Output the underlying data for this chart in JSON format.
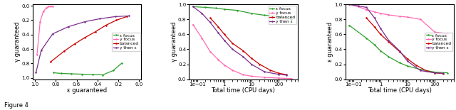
{
  "fig_width": 6.4,
  "fig_height": 1.55,
  "colors": {
    "eps_focus": "#2ca02c",
    "y_focus": "#ff69b4",
    "balanced": "#cc0000",
    "y_then_eps": "#7b2d8b"
  },
  "plot1": {
    "xlabel": "ε guaranteed",
    "ylabel": "γ guaranteed",
    "xlim": [
      1.02,
      -0.02
    ],
    "ylim": [
      1.02,
      -0.02
    ],
    "xticks": [
      1.0,
      0.8,
      0.6,
      0.4,
      0.2,
      0.0
    ],
    "yticks": [
      0.0,
      0.2,
      0.4,
      0.6,
      0.8,
      1.0
    ],
    "eps_focus": {
      "x": [
        0.82,
        0.75,
        0.65,
        0.55,
        0.45,
        0.35,
        0.25,
        0.17
      ],
      "y": [
        0.93,
        0.94,
        0.945,
        0.95,
        0.955,
        0.96,
        0.9,
        0.8
      ]
    },
    "y_focus": {
      "x": [
        0.98,
        0.95,
        0.92,
        0.89,
        0.87,
        0.85,
        0.83
      ],
      "y": [
        0.68,
        0.22,
        0.08,
        0.03,
        0.01,
        0.005,
        0.003
      ]
    },
    "balanced": {
      "x": [
        0.85,
        0.72,
        0.62,
        0.52,
        0.42,
        0.32,
        0.22,
        0.12
      ],
      "y": [
        0.78,
        0.63,
        0.53,
        0.44,
        0.36,
        0.27,
        0.2,
        0.15
      ]
    },
    "y_then_eps": {
      "x": [
        0.99,
        0.94,
        0.83,
        0.68,
        0.52,
        0.38,
        0.23,
        0.1
      ],
      "y": [
        0.93,
        0.62,
        0.39,
        0.29,
        0.22,
        0.18,
        0.15,
        0.14
      ]
    }
  },
  "plot2": {
    "xlabel": "Total time (CPU days)",
    "ylabel": "γ guaranteed",
    "xlim_log": [
      -1.3,
      2.7
    ],
    "ylim": [
      0.0,
      1.0
    ],
    "eps_focus": {
      "x": [
        0.07,
        0.2,
        0.5,
        1.0,
        3.0,
        10.0,
        30.0,
        100.0,
        300.0
      ],
      "y": [
        0.97,
        0.96,
        0.95,
        0.935,
        0.92,
        0.88,
        0.855,
        0.84,
        0.8
      ]
    },
    "y_focus": {
      "x": [
        0.07,
        0.15,
        0.3,
        0.6,
        1.0,
        2.0,
        5.0,
        10.0,
        30.0,
        100.0,
        300.0
      ],
      "y": [
        0.73,
        0.55,
        0.37,
        0.26,
        0.19,
        0.12,
        0.06,
        0.04,
        0.025,
        0.015,
        0.008
      ]
    },
    "balanced": {
      "x": [
        0.3,
        0.6,
        1.0,
        2.0,
        5.0,
        10.0,
        20.0,
        50.0,
        100.0,
        200.0
      ],
      "y": [
        0.82,
        0.7,
        0.6,
        0.48,
        0.38,
        0.28,
        0.2,
        0.12,
        0.08,
        0.06
      ]
    },
    "y_then_eps": {
      "x": [
        0.07,
        0.15,
        0.3,
        0.6,
        1.0,
        2.0,
        5.0,
        10.0,
        30.0,
        100.0,
        200.0
      ],
      "y": [
        0.97,
        0.88,
        0.76,
        0.62,
        0.52,
        0.4,
        0.3,
        0.2,
        0.1,
        0.065,
        0.055
      ]
    }
  },
  "plot3": {
    "xlabel": "Total time (CPU days)",
    "ylabel": "ε guaranteed",
    "xlim_log": [
      -1.3,
      2.7
    ],
    "ylim": [
      0.0,
      1.0
    ],
    "eps_focus": {
      "x": [
        0.07,
        0.3,
        0.6,
        1.0,
        2.0,
        5.0,
        10.0,
        30.0,
        100.0,
        300.0
      ],
      "y": [
        0.72,
        0.55,
        0.46,
        0.38,
        0.3,
        0.22,
        0.175,
        0.13,
        0.095,
        0.085
      ]
    },
    "y_focus": {
      "x": [
        0.07,
        0.15,
        0.3,
        0.6,
        1.0,
        2.0,
        5.0,
        10.0,
        30.0,
        100.0,
        300.0
      ],
      "y": [
        1.0,
        0.97,
        0.93,
        0.9,
        0.88,
        0.86,
        0.84,
        0.83,
        0.8,
        0.63,
        0.61
      ]
    },
    "balanced": {
      "x": [
        0.3,
        0.6,
        1.0,
        2.0,
        5.0,
        10.0,
        20.0,
        50.0,
        100.0,
        200.0
      ],
      "y": [
        0.82,
        0.7,
        0.6,
        0.5,
        0.37,
        0.27,
        0.19,
        0.11,
        0.085,
        0.075
      ]
    },
    "y_then_eps": {
      "x": [
        0.07,
        0.15,
        0.3,
        0.6,
        1.0,
        2.0,
        5.0,
        10.0,
        30.0,
        100.0,
        200.0
      ],
      "y": [
        1.0,
        0.98,
        0.96,
        0.82,
        0.68,
        0.52,
        0.38,
        0.24,
        0.115,
        0.085,
        0.078
      ]
    }
  },
  "legend_labels": [
    "ε focus",
    "γ focus",
    "balanced",
    "γ then ε"
  ],
  "marker": "o",
  "markersize": 1.8,
  "linewidth": 0.9,
  "figure_label": "Figure 4"
}
